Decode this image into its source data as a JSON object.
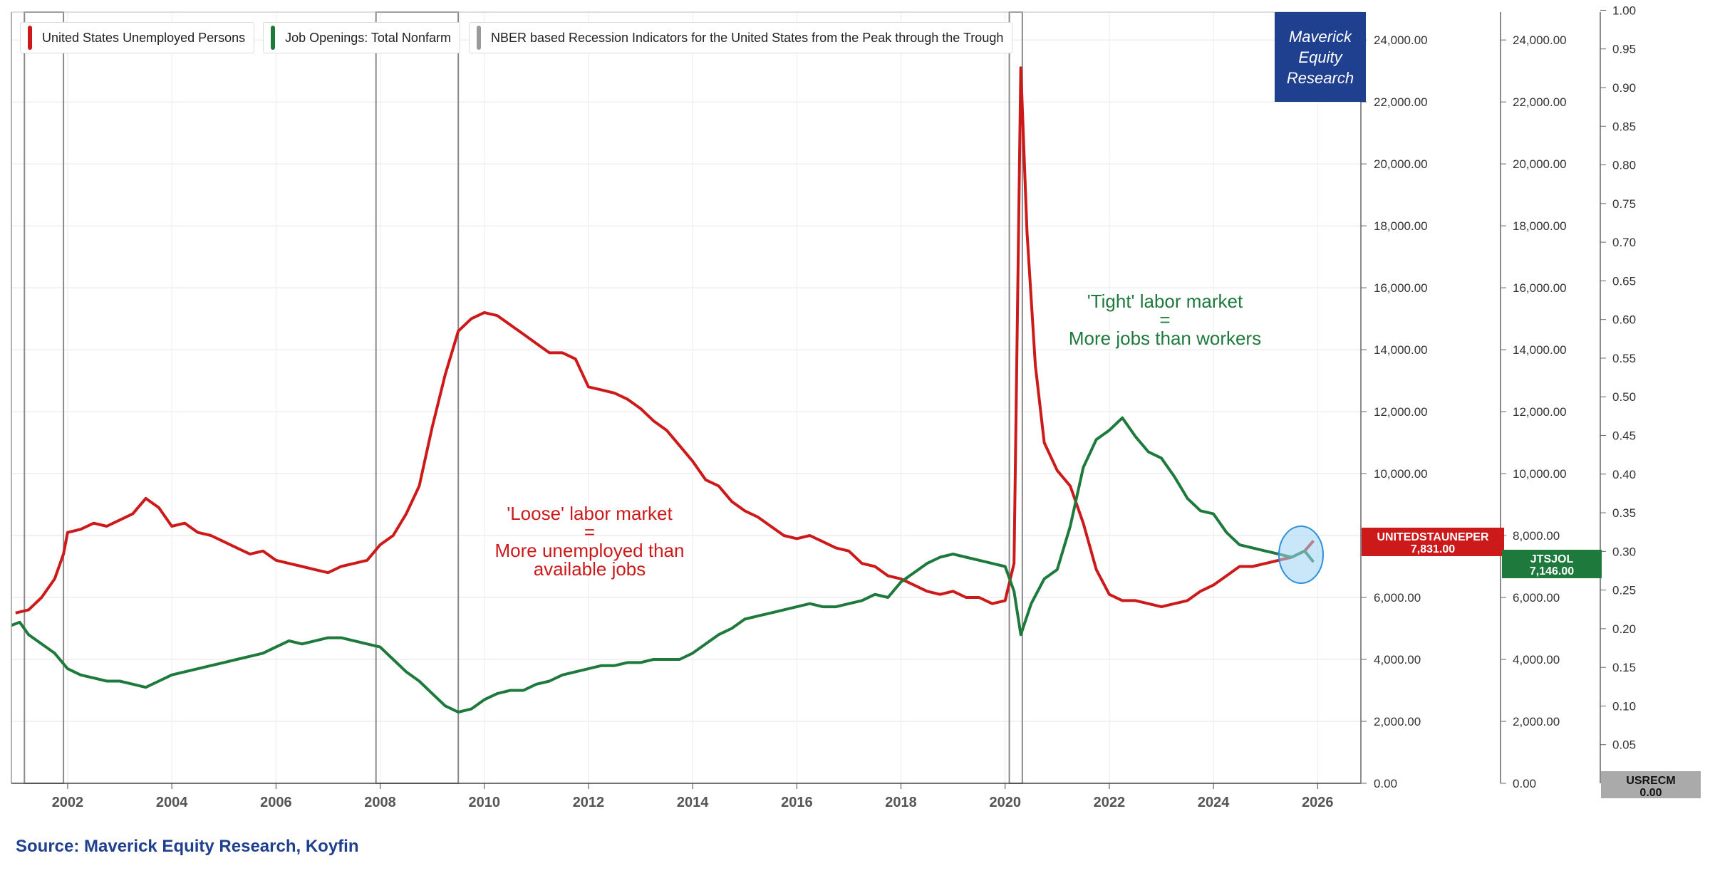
{
  "legend": {
    "items": [
      {
        "label": "United States Unemployed Persons",
        "color": "#cc1a1a"
      },
      {
        "label": "Job Openings: Total Nonfarm",
        "color": "#1e7a3c"
      },
      {
        "label": "NBER based Recession Indicators for the United States from the Peak through the Trough",
        "color": "#9a9a9a"
      }
    ]
  },
  "brand": {
    "line1": "Maverick",
    "line2": "Equity",
    "line3": "Research"
  },
  "annotations": {
    "loose": {
      "line1": "'Loose' labor market",
      "line2": "=",
      "line3": "More unemployed than",
      "line4": "available jobs"
    },
    "tight": {
      "line1": "'Tight' labor market",
      "line2": "=",
      "line3": "More jobs than workers"
    }
  },
  "last_values": {
    "unemployed": {
      "ticker": "UNITEDSTAUNEPER",
      "value": "7,831.00"
    },
    "openings": {
      "ticker": "JTSJOL",
      "value": "7,146.00"
    },
    "recession": {
      "ticker": "USRECM",
      "value": "0.00"
    }
  },
  "source": "Source: Maverick Equity Research, Koyfin",
  "chart_data": {
    "type": "line",
    "title": "",
    "x_ticks": [
      "2002",
      "2004",
      "2006",
      "2008",
      "2010",
      "2012",
      "2014",
      "2016",
      "2018",
      "2020",
      "2022",
      "2024",
      "2026"
    ],
    "xlim": [
      2000.92,
      2026.83
    ],
    "left_axis_labels": [
      "0.00",
      "2,000.00",
      "4,000.00",
      "6,000.00",
      "8,000.00",
      "10,000.00",
      "12,000.00",
      "14,000.00",
      "16,000.00",
      "18,000.00",
      "20,000.00",
      "22,000.00",
      "24,000.00"
    ],
    "mid_axis_labels": [
      "0.00",
      "2,000.00",
      "4,000.00",
      "6,000.00",
      "8,000.00",
      "10,000.00",
      "12,000.00",
      "14,000.00",
      "16,000.00",
      "18,000.00",
      "20,000.00",
      "22,000.00",
      "24,000.00"
    ],
    "right_axis_labels": [
      "0.05",
      "0.10",
      "0.15",
      "0.20",
      "0.25",
      "0.30",
      "0.35",
      "0.40",
      "0.45",
      "0.50",
      "0.55",
      "0.60",
      "0.65",
      "0.70",
      "0.75",
      "0.80",
      "0.85",
      "0.90",
      "0.95",
      "1.00"
    ],
    "ylim": [
      0,
      24900
    ],
    "recession_periods": [
      [
        2001.17,
        2001.92
      ],
      [
        2007.92,
        2009.5
      ],
      [
        2020.08,
        2020.33
      ]
    ],
    "series": [
      {
        "name": "United States Unemployed Persons",
        "color": "#cc1a1a",
        "points": [
          [
            2001.0,
            5500
          ],
          [
            2001.25,
            5600
          ],
          [
            2001.5,
            6000
          ],
          [
            2001.75,
            6600
          ],
          [
            2001.92,
            7400
          ],
          [
            2002.0,
            8100
          ],
          [
            2002.25,
            8200
          ],
          [
            2002.5,
            8400
          ],
          [
            2002.75,
            8300
          ],
          [
            2003.0,
            8500
          ],
          [
            2003.25,
            8700
          ],
          [
            2003.5,
            9200
          ],
          [
            2003.75,
            8900
          ],
          [
            2004.0,
            8300
          ],
          [
            2004.25,
            8400
          ],
          [
            2004.5,
            8100
          ],
          [
            2004.75,
            8000
          ],
          [
            2005.0,
            7800
          ],
          [
            2005.25,
            7600
          ],
          [
            2005.5,
            7400
          ],
          [
            2005.75,
            7500
          ],
          [
            2006.0,
            7200
          ],
          [
            2006.25,
            7100
          ],
          [
            2006.5,
            7000
          ],
          [
            2006.75,
            6900
          ],
          [
            2007.0,
            6800
          ],
          [
            2007.25,
            7000
          ],
          [
            2007.5,
            7100
          ],
          [
            2007.75,
            7200
          ],
          [
            2008.0,
            7700
          ],
          [
            2008.25,
            8000
          ],
          [
            2008.5,
            8700
          ],
          [
            2008.75,
            9600
          ],
          [
            2009.0,
            11500
          ],
          [
            2009.25,
            13200
          ],
          [
            2009.5,
            14600
          ],
          [
            2009.75,
            15000
          ],
          [
            2010.0,
            15200
          ],
          [
            2010.25,
            15100
          ],
          [
            2010.5,
            14800
          ],
          [
            2010.75,
            14500
          ],
          [
            2011.0,
            14200
          ],
          [
            2011.25,
            13900
          ],
          [
            2011.5,
            13900
          ],
          [
            2011.75,
            13700
          ],
          [
            2012.0,
            12800
          ],
          [
            2012.25,
            12700
          ],
          [
            2012.5,
            12600
          ],
          [
            2012.75,
            12400
          ],
          [
            2013.0,
            12100
          ],
          [
            2013.25,
            11700
          ],
          [
            2013.5,
            11400
          ],
          [
            2013.75,
            10900
          ],
          [
            2014.0,
            10400
          ],
          [
            2014.25,
            9800
          ],
          [
            2014.5,
            9600
          ],
          [
            2014.75,
            9100
          ],
          [
            2015.0,
            8800
          ],
          [
            2015.25,
            8600
          ],
          [
            2015.5,
            8300
          ],
          [
            2015.75,
            8000
          ],
          [
            2016.0,
            7900
          ],
          [
            2016.25,
            8000
          ],
          [
            2016.5,
            7800
          ],
          [
            2016.75,
            7600
          ],
          [
            2017.0,
            7500
          ],
          [
            2017.25,
            7100
          ],
          [
            2017.5,
            7000
          ],
          [
            2017.75,
            6700
          ],
          [
            2018.0,
            6600
          ],
          [
            2018.25,
            6400
          ],
          [
            2018.5,
            6200
          ],
          [
            2018.75,
            6100
          ],
          [
            2019.0,
            6200
          ],
          [
            2019.25,
            6000
          ],
          [
            2019.5,
            6000
          ],
          [
            2019.75,
            5800
          ],
          [
            2020.0,
            5900
          ],
          [
            2020.17,
            7100
          ],
          [
            2020.3,
            23100
          ],
          [
            2020.42,
            17800
          ],
          [
            2020.58,
            13500
          ],
          [
            2020.75,
            11000
          ],
          [
            2021.0,
            10100
          ],
          [
            2021.25,
            9600
          ],
          [
            2021.5,
            8400
          ],
          [
            2021.75,
            6900
          ],
          [
            2022.0,
            6100
          ],
          [
            2022.25,
            5900
          ],
          [
            2022.5,
            5900
          ],
          [
            2022.75,
            5800
          ],
          [
            2023.0,
            5700
          ],
          [
            2023.25,
            5800
          ],
          [
            2023.5,
            5900
          ],
          [
            2023.75,
            6200
          ],
          [
            2024.0,
            6400
          ],
          [
            2024.25,
            6700
          ],
          [
            2024.5,
            7000
          ],
          [
            2024.75,
            7000
          ],
          [
            2025.0,
            7100
          ],
          [
            2025.25,
            7200
          ],
          [
            2025.5,
            7300
          ],
          [
            2025.75,
            7500
          ],
          [
            2025.92,
            7831
          ]
        ]
      },
      {
        "name": "Job Openings: Total Nonfarm",
        "color": "#1e7a3c",
        "points": [
          [
            2000.92,
            5100
          ],
          [
            2001.08,
            5200
          ],
          [
            2001.25,
            4800
          ],
          [
            2001.5,
            4500
          ],
          [
            2001.75,
            4200
          ],
          [
            2002.0,
            3700
          ],
          [
            2002.25,
            3500
          ],
          [
            2002.5,
            3400
          ],
          [
            2002.75,
            3300
          ],
          [
            2003.0,
            3300
          ],
          [
            2003.25,
            3200
          ],
          [
            2003.5,
            3100
          ],
          [
            2003.75,
            3300
          ],
          [
            2004.0,
            3500
          ],
          [
            2004.25,
            3600
          ],
          [
            2004.5,
            3700
          ],
          [
            2004.75,
            3800
          ],
          [
            2005.0,
            3900
          ],
          [
            2005.25,
            4000
          ],
          [
            2005.5,
            4100
          ],
          [
            2005.75,
            4200
          ],
          [
            2006.0,
            4400
          ],
          [
            2006.25,
            4600
          ],
          [
            2006.5,
            4500
          ],
          [
            2006.75,
            4600
          ],
          [
            2007.0,
            4700
          ],
          [
            2007.25,
            4700
          ],
          [
            2007.5,
            4600
          ],
          [
            2007.75,
            4500
          ],
          [
            2008.0,
            4400
          ],
          [
            2008.25,
            4000
          ],
          [
            2008.5,
            3600
          ],
          [
            2008.75,
            3300
          ],
          [
            2009.0,
            2900
          ],
          [
            2009.25,
            2500
          ],
          [
            2009.5,
            2300
          ],
          [
            2009.75,
            2400
          ],
          [
            2010.0,
            2700
          ],
          [
            2010.25,
            2900
          ],
          [
            2010.5,
            3000
          ],
          [
            2010.75,
            3000
          ],
          [
            2011.0,
            3200
          ],
          [
            2011.25,
            3300
          ],
          [
            2011.5,
            3500
          ],
          [
            2011.75,
            3600
          ],
          [
            2012.0,
            3700
          ],
          [
            2012.25,
            3800
          ],
          [
            2012.5,
            3800
          ],
          [
            2012.75,
            3900
          ],
          [
            2013.0,
            3900
          ],
          [
            2013.25,
            4000
          ],
          [
            2013.5,
            4000
          ],
          [
            2013.75,
            4000
          ],
          [
            2014.0,
            4200
          ],
          [
            2014.25,
            4500
          ],
          [
            2014.5,
            4800
          ],
          [
            2014.75,
            5000
          ],
          [
            2015.0,
            5300
          ],
          [
            2015.25,
            5400
          ],
          [
            2015.5,
            5500
          ],
          [
            2015.75,
            5600
          ],
          [
            2016.0,
            5700
          ],
          [
            2016.25,
            5800
          ],
          [
            2016.5,
            5700
          ],
          [
            2016.75,
            5700
          ],
          [
            2017.0,
            5800
          ],
          [
            2017.25,
            5900
          ],
          [
            2017.5,
            6100
          ],
          [
            2017.75,
            6000
          ],
          [
            2018.0,
            6500
          ],
          [
            2018.25,
            6800
          ],
          [
            2018.5,
            7100
          ],
          [
            2018.75,
            7300
          ],
          [
            2019.0,
            7400
          ],
          [
            2019.25,
            7300
          ],
          [
            2019.5,
            7200
          ],
          [
            2019.75,
            7100
          ],
          [
            2020.0,
            7000
          ],
          [
            2020.17,
            6200
          ],
          [
            2020.3,
            4800
          ],
          [
            2020.5,
            5800
          ],
          [
            2020.75,
            6600
          ],
          [
            2021.0,
            6900
          ],
          [
            2021.25,
            8300
          ],
          [
            2021.5,
            10200
          ],
          [
            2021.75,
            11100
          ],
          [
            2022.0,
            11400
          ],
          [
            2022.25,
            11800
          ],
          [
            2022.5,
            11200
          ],
          [
            2022.75,
            10700
          ],
          [
            2023.0,
            10500
          ],
          [
            2023.25,
            9900
          ],
          [
            2023.5,
            9200
          ],
          [
            2023.75,
            8800
          ],
          [
            2024.0,
            8700
          ],
          [
            2024.25,
            8100
          ],
          [
            2024.5,
            7700
          ],
          [
            2024.75,
            7600
          ],
          [
            2025.0,
            7500
          ],
          [
            2025.25,
            7400
          ],
          [
            2025.5,
            7300
          ],
          [
            2025.75,
            7500
          ],
          [
            2025.92,
            7146
          ]
        ]
      }
    ]
  }
}
